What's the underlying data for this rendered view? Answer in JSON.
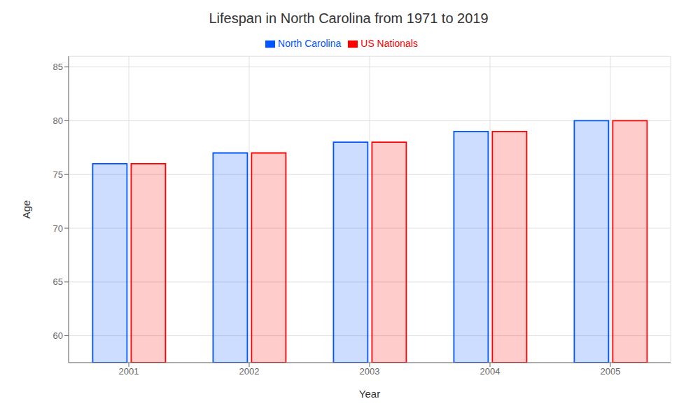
{
  "chart_data": {
    "type": "bar",
    "title": "Lifespan in North Carolina from 1971 to 2019",
    "x_label": "Year",
    "y_label": "Age",
    "categories": [
      "2001",
      "2002",
      "2003",
      "2004",
      "2005"
    ],
    "series": [
      {
        "name": "North Carolina",
        "color": "#0055ff",
        "values": [
          76.0,
          77.0,
          78.0,
          79.0,
          80.0
        ]
      },
      {
        "name": "US Nationals",
        "color": "#ff0000",
        "values": [
          76.0,
          77.0,
          78.0,
          79.0,
          80.0
        ]
      }
    ],
    "ylim": [
      57.5,
      86
    ],
    "yticks": [
      60,
      65,
      70,
      75,
      80,
      85
    ],
    "grid": true,
    "legend": "top"
  }
}
